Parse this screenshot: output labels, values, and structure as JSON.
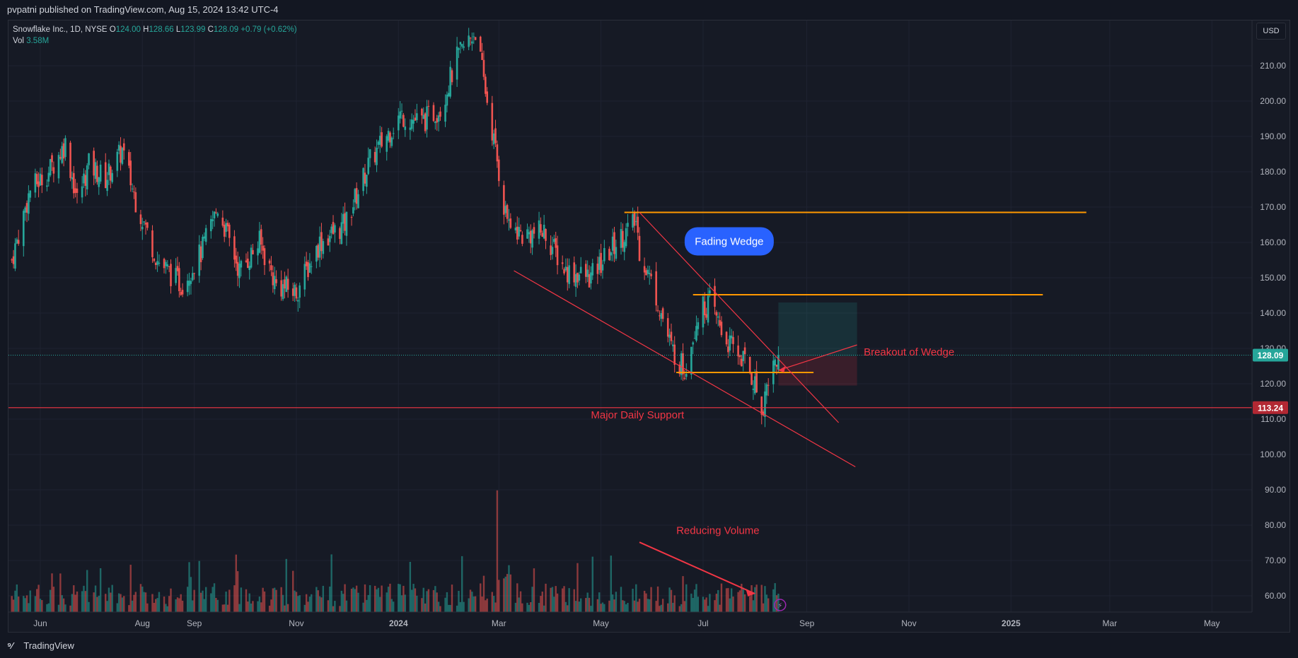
{
  "header": {
    "publisher": "pvpatni published on TradingView.com, Aug 15, 2024 13:42 UTC-4"
  },
  "legend": {
    "symbol": "Snowflake Inc., 1D, NYSE",
    "o_label": "O",
    "o": "124.00",
    "h_label": "H",
    "h": "128.66",
    "l_label": "L",
    "l": "123.99",
    "c_label": "C",
    "c": "128.09",
    "change": "+0.79 (+0.62%)",
    "vol_label": "Vol",
    "vol": "3.58M"
  },
  "currency": "USD",
  "footer": {
    "brand": "TradingView",
    "logo_icon": "tradingview-logo-icon"
  },
  "colors": {
    "up": "#26a69a",
    "down": "#ef5350",
    "orange": "#ff9800",
    "trend": "#f23645",
    "bubble": "#2962ff"
  },
  "chart_data": {
    "type": "candlestick",
    "title": "",
    "y_axis": {
      "ticks": [
        "210.00",
        "200.00",
        "190.00",
        "180.00",
        "170.00",
        "160.00",
        "150.00",
        "140.00",
        "130.00",
        "120.00",
        "110.00",
        "100.00",
        "90.00",
        "80.00",
        "70.00",
        "60.00"
      ],
      "range": [
        55,
        222
      ]
    },
    "x_axis": {
      "ticks": [
        "Jun",
        "Aug",
        "Sep",
        "Nov",
        "2024",
        "Mar",
        "May",
        "Jul",
        "Sep",
        "Nov",
        "2025",
        "Mar",
        "May"
      ],
      "range": [
        "2023-05-13",
        "2025-05-25"
      ]
    },
    "price_path": [
      [
        "2023-05-15",
        155
      ],
      [
        "2023-05-26",
        175
      ],
      [
        "2023-06-06",
        180
      ],
      [
        "2023-06-16",
        188
      ],
      [
        "2023-06-23",
        172
      ],
      [
        "2023-06-30",
        182
      ],
      [
        "2023-07-10",
        178
      ],
      [
        "2023-07-20",
        186
      ],
      [
        "2023-07-28",
        172
      ],
      [
        "2023-08-10",
        155
      ],
      [
        "2023-08-24",
        148
      ],
      [
        "2023-09-05",
        157
      ],
      [
        "2023-09-15",
        170
      ],
      [
        "2023-09-28",
        152
      ],
      [
        "2023-10-10",
        160
      ],
      [
        "2023-10-20",
        148
      ],
      [
        "2023-11-01",
        146
      ],
      [
        "2023-11-15",
        160
      ],
      [
        "2023-11-30",
        165
      ],
      [
        "2023-12-15",
        183
      ],
      [
        "2024-01-02",
        196
      ],
      [
        "2024-01-15",
        194
      ],
      [
        "2024-01-26",
        198
      ],
      [
        "2024-02-05",
        212
      ],
      [
        "2024-02-16",
        220
      ],
      [
        "2024-02-29",
        183
      ],
      [
        "2024-03-05",
        167
      ],
      [
        "2024-03-15",
        162
      ],
      [
        "2024-03-28",
        163
      ],
      [
        "2024-04-10",
        152
      ],
      [
        "2024-04-25",
        150
      ],
      [
        "2024-05-10",
        160
      ],
      [
        "2024-05-22",
        166
      ],
      [
        "2024-05-24",
        158
      ],
      [
        "2024-06-03",
        145
      ],
      [
        "2024-06-12",
        130
      ],
      [
        "2024-06-20",
        124
      ],
      [
        "2024-06-28",
        140
      ],
      [
        "2024-07-05",
        143
      ],
      [
        "2024-07-15",
        132
      ],
      [
        "2024-07-25",
        127
      ],
      [
        "2024-08-01",
        120
      ],
      [
        "2024-08-05",
        112
      ],
      [
        "2024-08-09",
        122
      ],
      [
        "2024-08-15",
        128.09
      ]
    ],
    "last_price": {
      "value": 128.09,
      "label": "128.09"
    },
    "support": {
      "value": 113.24,
      "label": "113.24",
      "name": "Major Daily Support"
    },
    "horizontal_levels": [
      {
        "y": 168.5,
        "x1": "2024-05-15",
        "x2": "2025-02-15"
      },
      {
        "y": 145.2,
        "x1": "2024-06-25",
        "x2": "2025-01-20"
      },
      {
        "y": 123.2,
        "x1": "2024-06-15",
        "x2": "2024-09-05"
      }
    ],
    "trendlines": [
      {
        "from": [
          "2024-05-24",
          168.5
        ],
        "to": [
          "2024-09-20",
          109
        ]
      },
      {
        "from": [
          "2024-03-10",
          152
        ],
        "to": [
          "2024-09-30",
          96.5
        ]
      }
    ],
    "position": {
      "entry": 127.8,
      "target": 143,
      "stop": 119.5,
      "x1": "2024-08-15",
      "x2": "2024-10-01"
    },
    "annotations": {
      "fading_wedge": "Fading Wedge",
      "breakout": "Breakout of Wedge",
      "support_label": "Major Daily Support",
      "reducing_volume": "Reducing Volume"
    },
    "volume": {
      "spike_date": "2024-02-29",
      "spike_value": 97,
      "arrow_from": [
        "2024-05-24",
        74
      ],
      "arrow_to": [
        "2024-08-01",
        60
      ]
    }
  }
}
